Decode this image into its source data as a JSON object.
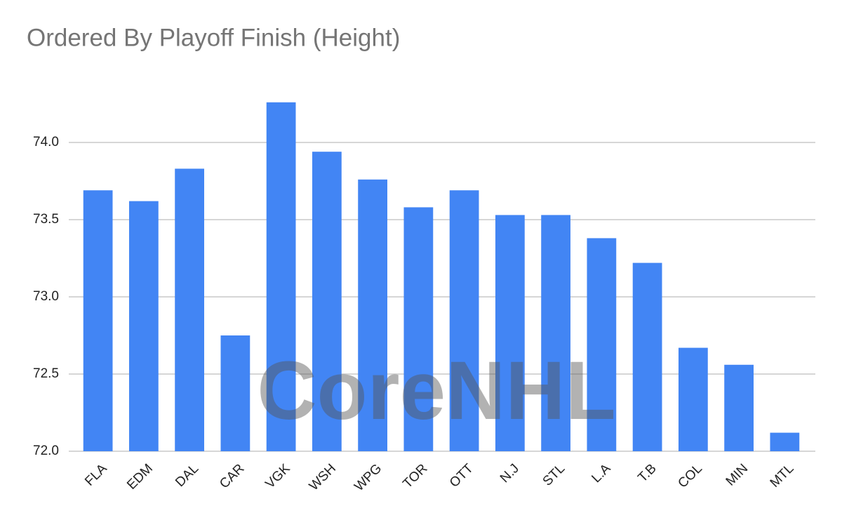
{
  "chart_data": {
    "type": "bar",
    "title": "Ordered By Playoff Finish  (Height)",
    "watermark": "CoreNHL",
    "categories": [
      "FLA",
      "EDM",
      "DAL",
      "CAR",
      "VGK",
      "WSH",
      "WPG",
      "TOR",
      "OTT",
      "N.J",
      "STL",
      "L.A",
      "T.B",
      "COL",
      "MIN",
      "MTL"
    ],
    "values": [
      73.69,
      73.62,
      73.83,
      72.75,
      74.26,
      73.94,
      73.76,
      73.58,
      73.69,
      73.53,
      73.53,
      73.38,
      73.22,
      72.67,
      72.56,
      72.12
    ],
    "color": "#4285f4",
    "ylim": [
      72,
      74.5
    ],
    "yticks": [
      {
        "value": 72,
        "label": "72.0"
      },
      {
        "value": 72.5,
        "label": "72.5"
      },
      {
        "value": 73,
        "label": "73.0"
      },
      {
        "value": 73.5,
        "label": "73.5"
      },
      {
        "value": 74,
        "label": "74.0"
      }
    ],
    "grid": true
  }
}
